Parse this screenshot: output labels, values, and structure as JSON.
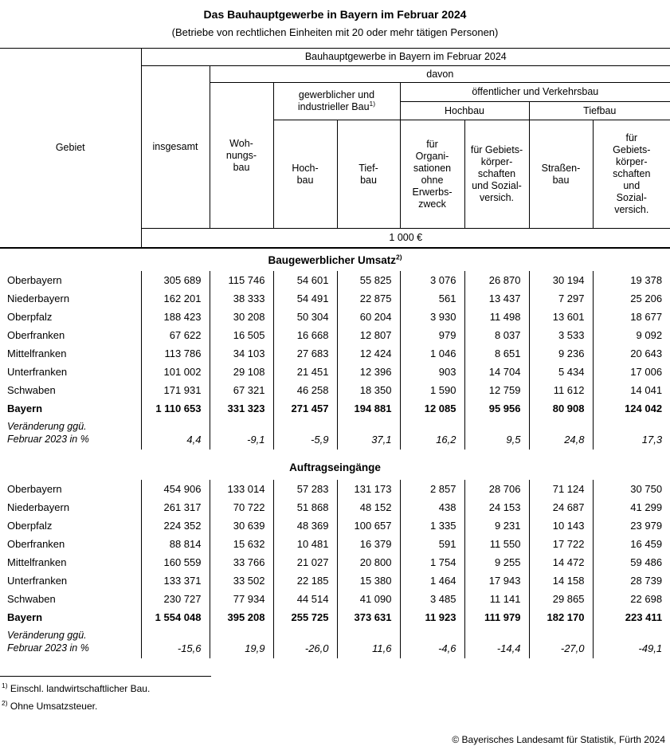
{
  "document": {
    "title": "Das Bauhauptgewerbe in Bayern im Februar 2024",
    "subtitle": "(Betriebe von rechtlichen Einheiten mit 20 oder mehr tätigen Personen)",
    "copyright": "© Bayerisches Landesamt für Statistik, Fürth 2024"
  },
  "header": {
    "gebiet": "Gebiet",
    "group": "Bauhauptgewerbe in Bayern im Februar 2024",
    "insgesamt": "insgesamt",
    "davon": "davon",
    "wohnungsbau": "Woh-\nnungs-\nbau",
    "gewerblich": {
      "label": "gewerblicher und\nindustrieller Bau",
      "sup": "1)"
    },
    "oeffentlich": "öffentlicher und Verkehrsbau",
    "hochbau_group": "Hochbau",
    "tiefbau_group": "Tiefbau",
    "cols": {
      "hochbau": "Hoch-\nbau",
      "tiefbau": "Tief-\nbau",
      "org": "für\nOrgani-\nsationen\nohne\nErwerbs-\nzweck",
      "gebietskoerper_hoch": "für Gebiets-\nkörper-\nschaften\nund Sozial-\nversich.",
      "strassenbau": "Straßen-\nbau",
      "gebietskoerper_tief": "für\nGebiets-\nkörper-\nschaften\nund\nSozial-\nversich."
    },
    "unit": "1 000 €"
  },
  "umsatz": {
    "title": "Baugewerblicher Umsatz",
    "title_sup": "2)",
    "rows": [
      {
        "gebiet": "Oberbayern",
        "values": [
          "305 689",
          "115 746",
          "54 601",
          "55 825",
          "3 076",
          "26 870",
          "30 194",
          "19 378"
        ]
      },
      {
        "gebiet": "Niederbayern",
        "values": [
          "162 201",
          "38 333",
          "54 491",
          "22 875",
          "561",
          "13 437",
          "7 297",
          "25 206"
        ]
      },
      {
        "gebiet": "Oberpfalz",
        "values": [
          "188 423",
          "30 208",
          "50 304",
          "60 204",
          "3 930",
          "11 498",
          "13 601",
          "18 677"
        ]
      },
      {
        "gebiet": "Oberfranken",
        "values": [
          "67 622",
          "16 505",
          "16 668",
          "12 807",
          "979",
          "8 037",
          "3 533",
          "9 092"
        ]
      },
      {
        "gebiet": "Mittelfranken",
        "values": [
          "113 786",
          "34 103",
          "27 683",
          "12 424",
          "1 046",
          "8 651",
          "9 236",
          "20 643"
        ]
      },
      {
        "gebiet": "Unterfranken",
        "values": [
          "101 002",
          "29 108",
          "21 451",
          "12 396",
          "903",
          "14 704",
          "5 434",
          "17 006"
        ]
      },
      {
        "gebiet": "Schwaben",
        "values": [
          "171 931",
          "67 321",
          "46 258",
          "18 350",
          "1 590",
          "12 759",
          "11 612",
          "14 041"
        ]
      },
      {
        "gebiet": "Bayern",
        "bold": true,
        "values": [
          "1 110 653",
          "331 323",
          "271 457",
          "194 881",
          "12 085",
          "95 956",
          "80 908",
          "124 042"
        ]
      }
    ],
    "change": {
      "label": "Veränderung ggü.\nFebruar 2023 in %",
      "values": [
        "4,4",
        "-9,1",
        "-5,9",
        "37,1",
        "16,2",
        "9,5",
        "24,8",
        "17,3"
      ]
    }
  },
  "auftraege": {
    "title": "Auftragseingänge",
    "rows": [
      {
        "gebiet": "Oberbayern",
        "values": [
          "454 906",
          "133 014",
          "57 283",
          "131 173",
          "2 857",
          "28 706",
          "71 124",
          "30 750"
        ]
      },
      {
        "gebiet": "Niederbayern",
        "values": [
          "261 317",
          "70 722",
          "51 868",
          "48 152",
          "438",
          "24 153",
          "24 687",
          "41 299"
        ]
      },
      {
        "gebiet": "Oberpfalz",
        "values": [
          "224 352",
          "30 639",
          "48 369",
          "100 657",
          "1 335",
          "9 231",
          "10 143",
          "23 979"
        ]
      },
      {
        "gebiet": "Oberfranken",
        "values": [
          "88 814",
          "15 632",
          "10 481",
          "16 379",
          "591",
          "11 550",
          "17 722",
          "16 459"
        ]
      },
      {
        "gebiet": "Mittelfranken",
        "values": [
          "160 559",
          "33 766",
          "21 027",
          "20 800",
          "1 754",
          "9 255",
          "14 472",
          "59 486"
        ]
      },
      {
        "gebiet": "Unterfranken",
        "values": [
          "133 371",
          "33 502",
          "22 185",
          "15 380",
          "1 464",
          "17 943",
          "14 158",
          "28 739"
        ]
      },
      {
        "gebiet": "Schwaben",
        "values": [
          "230 727",
          "77 934",
          "44 514",
          "41 090",
          "3 485",
          "11 141",
          "29 865",
          "22 698"
        ]
      },
      {
        "gebiet": "Bayern",
        "bold": true,
        "values": [
          "1 554 048",
          "395 208",
          "255 725",
          "373 631",
          "11 923",
          "111 979",
          "182 170",
          "223 411"
        ]
      }
    ],
    "change": {
      "label": "Veränderung ggü.\nFebruar 2023 in %",
      "values": [
        "-15,6",
        "19,9",
        "-26,0",
        "11,6",
        "-4,6",
        "-14,4",
        "-27,0",
        "-49,1"
      ]
    }
  },
  "footnotes": [
    {
      "sup": "1)",
      "text": "Einschl. landwirtschaftlicher Bau."
    },
    {
      "sup": "2)",
      "text": "Ohne Umsatzsteuer."
    }
  ]
}
